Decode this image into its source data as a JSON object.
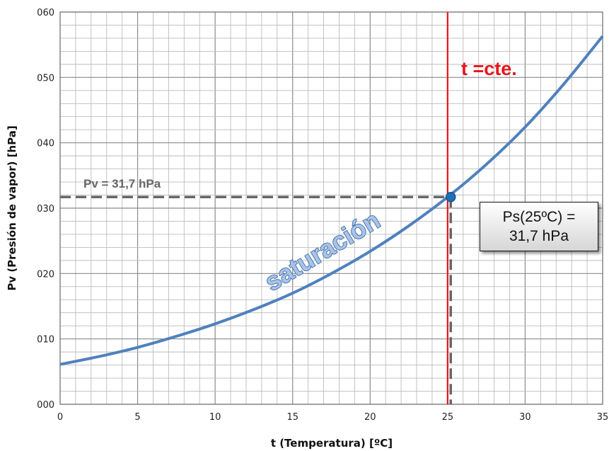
{
  "chart_data": {
    "type": "line",
    "title": "",
    "xlabel": "t (Temperatura) [ºC]",
    "ylabel": "Pv (Presión de vapor) [hPa]",
    "xlim": [
      0,
      35
    ],
    "ylim": [
      0,
      60
    ],
    "x_ticks": [
      "0",
      "5",
      "10",
      "15",
      "20",
      "25",
      "30",
      "35"
    ],
    "y_ticks": [
      "000",
      "010",
      "020",
      "030",
      "040",
      "050",
      "060"
    ],
    "grid": true,
    "series": [
      {
        "color": "#4f81bd",
        "x": [
          0,
          2.5,
          5,
          7.5,
          10,
          12.5,
          15,
          17.5,
          20,
          22.5,
          25,
          27.5,
          30,
          32.5,
          35
        ],
        "y": [
          6.1,
          7.3,
          8.7,
          10.4,
          12.3,
          14.5,
          17.0,
          20.0,
          23.4,
          27.3,
          31.7,
          36.7,
          42.4,
          49.0,
          56.3
        ]
      }
    ],
    "point": {
      "x": 25.2,
      "y": 31.7,
      "color": "#1f6fb8"
    },
    "vertical_line": {
      "x": 25,
      "color": "#e8141b"
    },
    "guide_color": "#666666",
    "annotations": {
      "t_const": "t =cte.",
      "pv_label": "Pv = 31,7 hPa",
      "curve_label": "saturación",
      "ps_box_line1": "Ps(25ºC) =",
      "ps_box_line2": "31,7 hPa"
    }
  }
}
